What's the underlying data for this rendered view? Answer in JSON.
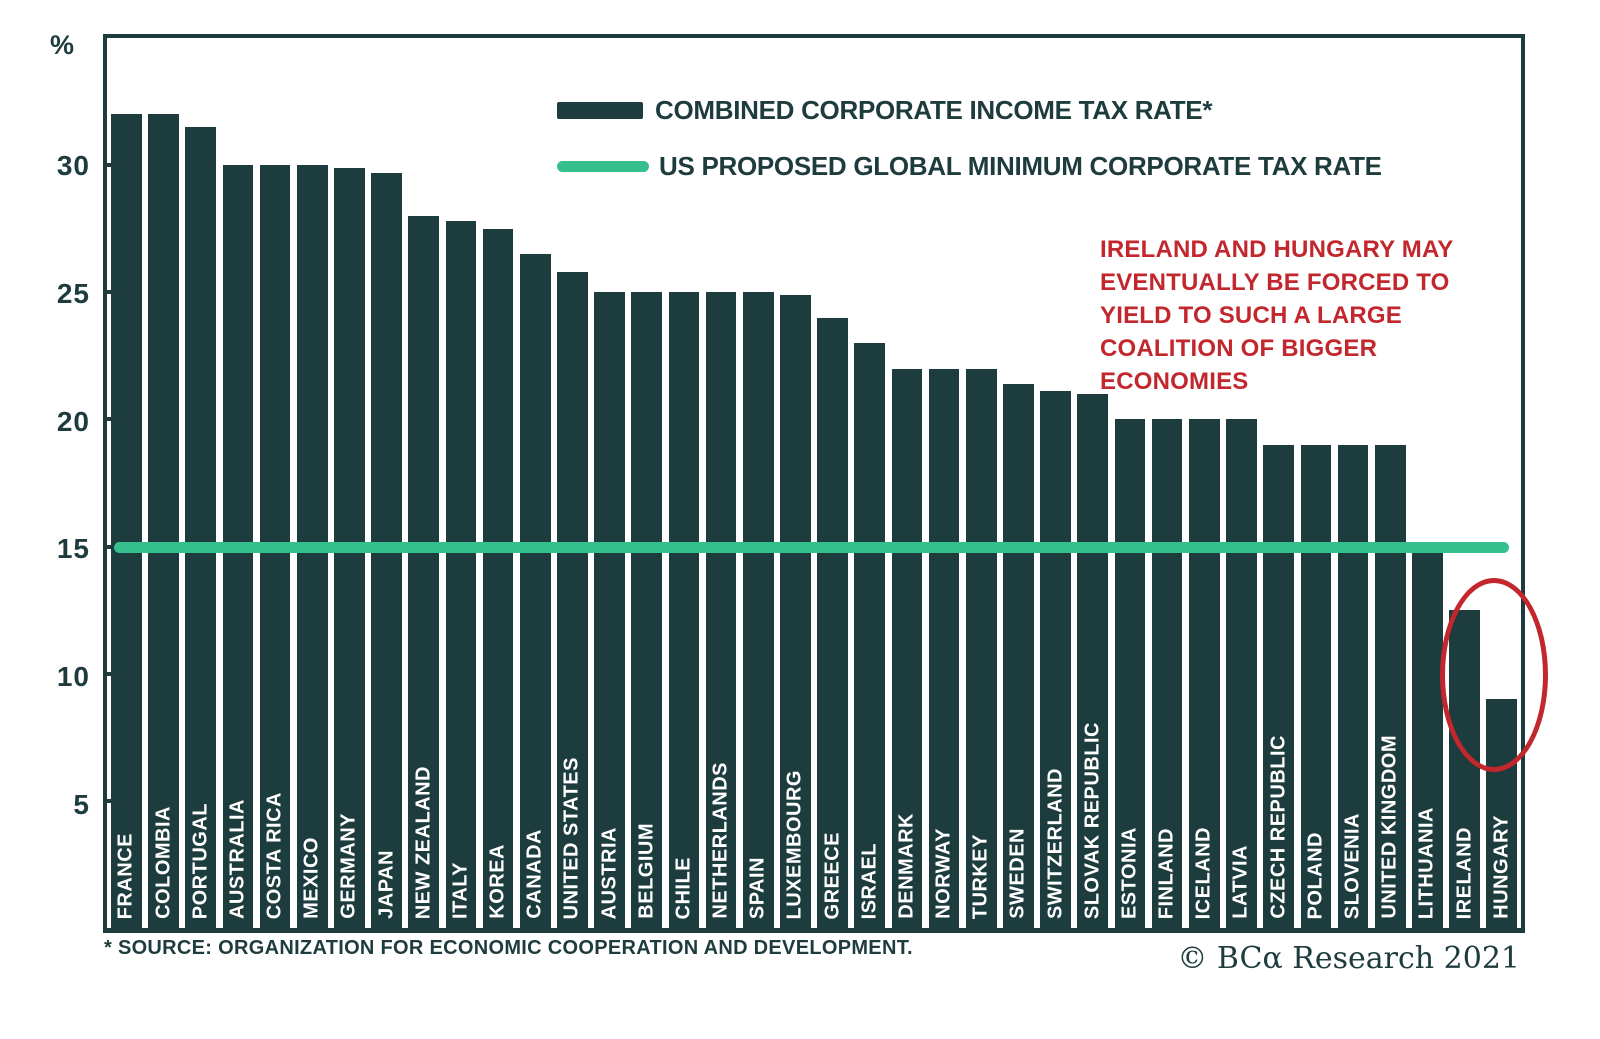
{
  "chart_data": {
    "type": "bar",
    "ylabel": "%",
    "ylim": [
      0,
      35
    ],
    "yticks": [
      5,
      10,
      15,
      20,
      25,
      30
    ],
    "grid": false,
    "legend_position": "top-center",
    "legend": [
      {
        "label": "COMBINED CORPORATE INCOME TAX RATE*",
        "shape": "bar",
        "color": "#1d3c3e"
      },
      {
        "label": "US PROPOSED GLOBAL MINIMUM CORPORATE TAX RATE",
        "shape": "line",
        "color": "#35bf8d"
      }
    ],
    "reference_line": {
      "value": 15,
      "color": "#35bf8d"
    },
    "categories": [
      "FRANCE",
      "COLOMBIA",
      "PORTUGAL",
      "AUSTRALIA",
      "COSTA RICA",
      "MEXICO",
      "GERMANY",
      "JAPAN",
      "NEW ZEALAND",
      "ITALY",
      "KOREA",
      "CANADA",
      "UNITED STATES",
      "AUSTRIA",
      "BELGIUM",
      "CHILE",
      "NETHERLANDS",
      "SPAIN",
      "LUXEMBOURG",
      "GREECE",
      "ISRAEL",
      "DENMARK",
      "NORWAY",
      "TURKEY",
      "SWEDEN",
      "SWITZERLAND",
      "SLOVAK REPUBLIC",
      "ESTONIA",
      "FINLAND",
      "ICELAND",
      "LATVIA",
      "CZECH REPUBLIC",
      "POLAND",
      "SLOVENIA",
      "UNITED KINGDOM",
      "LITHUANIA",
      "IRELAND",
      "HUNGARY"
    ],
    "values": [
      32,
      32,
      31.5,
      30,
      30,
      30,
      29.9,
      29.7,
      28,
      27.8,
      27.5,
      26.5,
      25.8,
      25,
      25,
      25,
      25,
      25,
      24.9,
      24,
      23,
      22,
      22,
      22,
      21.4,
      21.1,
      21,
      20,
      20,
      20,
      20,
      19,
      19,
      19,
      19,
      15,
      12.5,
      9
    ],
    "annotation": {
      "text": "IRELAND AND HUNGARY MAY EVENTUALLY BE FORCED TO YIELD TO SUCH A LARGE COALITION OF BIGGER ECONOMIES",
      "color": "#c2272d",
      "highlighted_countries": [
        "IRELAND",
        "HUNGARY"
      ]
    },
    "source": "* SOURCE: ORGANIZATION FOR ECONOMIC COOPERATION AND DEVELOPMENT.",
    "credit": "© BCα Research 2021",
    "colors": {
      "bar": "#1d3c3e",
      "reference_line": "#35bf8d",
      "annotation_red": "#c2272d",
      "axis_text": "#1e3b3e",
      "background": "#ffffff"
    }
  }
}
